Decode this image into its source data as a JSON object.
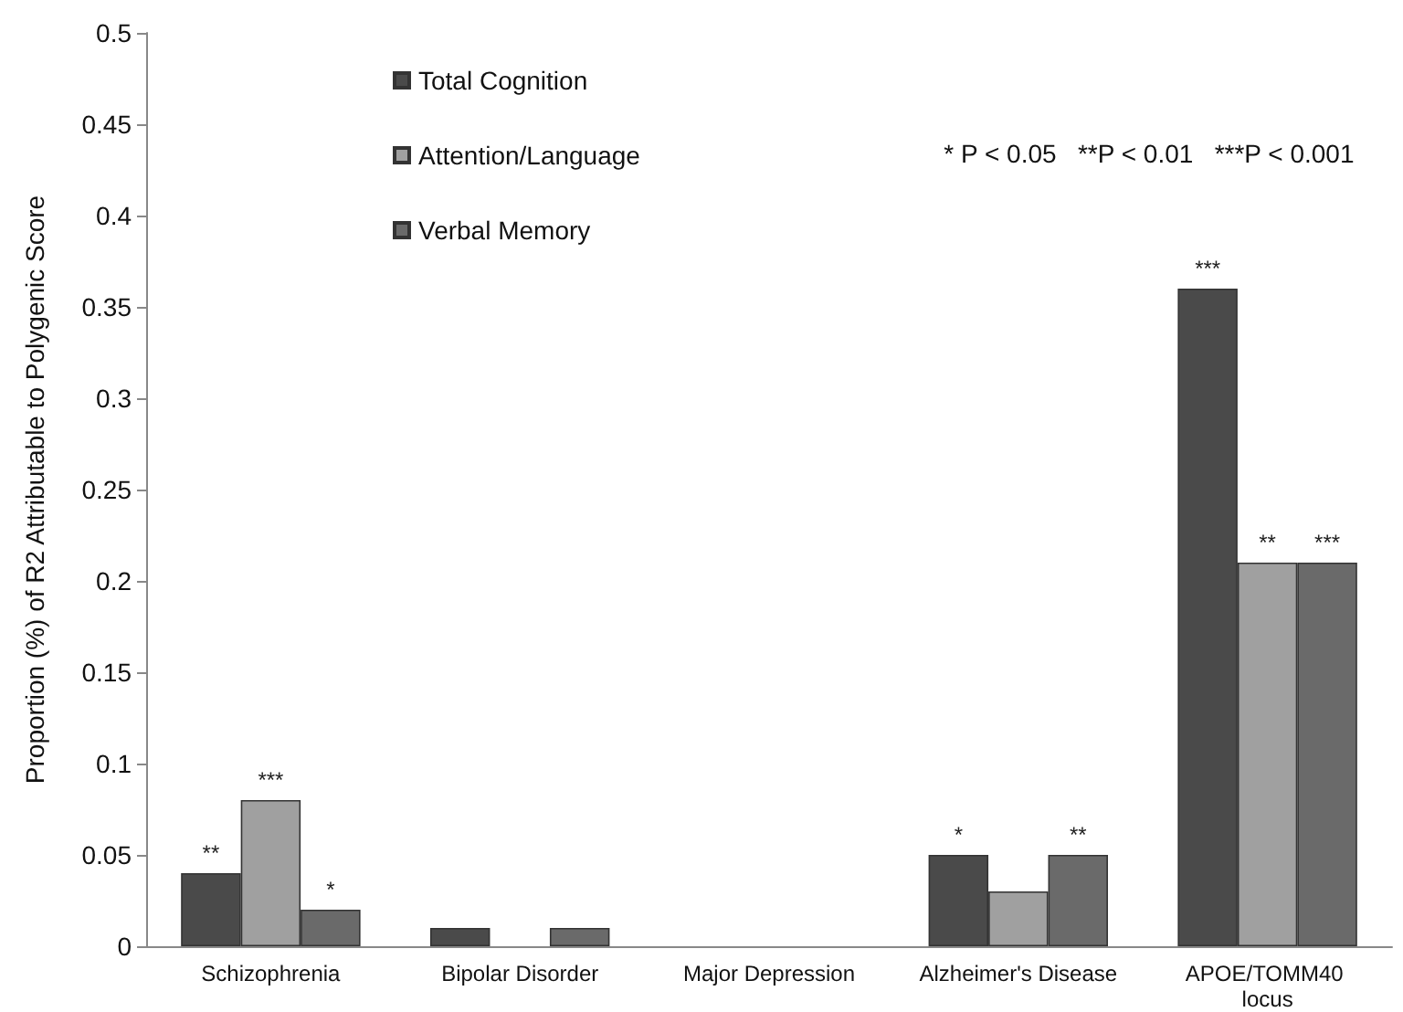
{
  "chart_data": {
    "type": "bar",
    "ylabel": "Proportion (%) of R2 Attributable to Polygenic Score",
    "categories": [
      "Schizophrenia",
      "Bipolar Disorder",
      "Major Depression",
      "Alzheimer's Disease",
      "APOE/TOMM40 locus"
    ],
    "series": [
      {
        "name": "Total Cognition",
        "color": "#4a4a4a",
        "values": [
          0.04,
          0.01,
          0,
          0.05,
          0.36
        ],
        "value_labels": [
          "**",
          null,
          null,
          "*",
          "***"
        ]
      },
      {
        "name": "Attention/Language",
        "color": "#a0a0a0",
        "values": [
          0.08,
          0,
          0,
          0.03,
          0.21
        ],
        "value_labels": [
          "***",
          null,
          null,
          null,
          "**"
        ]
      },
      {
        "name": "Verbal Memory",
        "color": "#6a6a6a",
        "values": [
          0.02,
          0.01,
          0,
          0.05,
          0.21
        ],
        "value_labels": [
          "*",
          null,
          null,
          "**",
          "***"
        ]
      }
    ],
    "ylim": [
      0,
      0.5
    ],
    "yticks": [
      0,
      0.05,
      0.1,
      0.15,
      0.2,
      0.25,
      0.3,
      0.35,
      0.4,
      0.45,
      0.5
    ],
    "annotations": [
      "* P < 0.05   **P < 0.01   ***P < 0.001"
    ],
    "grid": false,
    "legend": "top left"
  }
}
